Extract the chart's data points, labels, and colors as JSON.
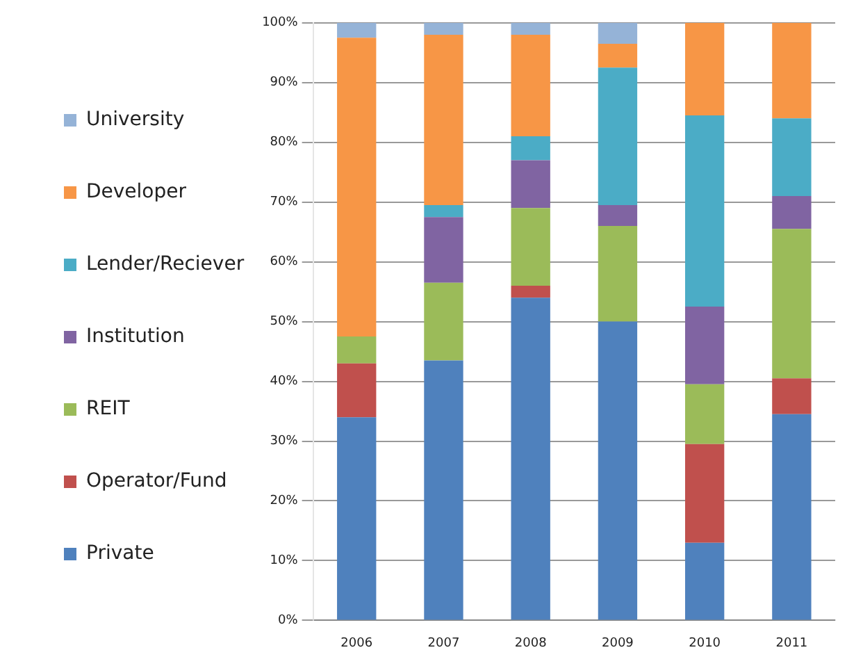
{
  "chart_data": {
    "type": "bar",
    "stacked": true,
    "categories": [
      "2006",
      "2007",
      "2008",
      "2009",
      "2010",
      "2011"
    ],
    "series": [
      {
        "name": "Private",
        "color": "#4f81bd",
        "values": [
          34,
          43.5,
          54,
          50,
          13,
          34.5
        ]
      },
      {
        "name": "Operator/Fund",
        "color": "#c0504d",
        "values": [
          9,
          0,
          2,
          0,
          16.5,
          6
        ]
      },
      {
        "name": "REIT",
        "color": "#9bbb59",
        "values": [
          4.5,
          13,
          13,
          16,
          10,
          25
        ]
      },
      {
        "name": "Institution",
        "color": "#8064a2",
        "values": [
          0,
          11,
          8,
          3.5,
          13,
          5.5
        ]
      },
      {
        "name": "Lender/Reciever",
        "color": "#4bacc6",
        "values": [
          0,
          2,
          4,
          23,
          32,
          13
        ]
      },
      {
        "name": "Developer",
        "color": "#f79646",
        "values": [
          50,
          28.5,
          17,
          4,
          15.5,
          16
        ]
      },
      {
        "name": "University",
        "color": "#95b3d7",
        "values": [
          2.5,
          2,
          2,
          3.5,
          0,
          0
        ]
      }
    ],
    "ylim": [
      0,
      100
    ],
    "yticks": [
      {
        "value": 0,
        "label": "0%"
      },
      {
        "value": 10,
        "label": "10%"
      },
      {
        "value": 20,
        "label": "20%"
      },
      {
        "value": 30,
        "label": "30%"
      },
      {
        "value": 40,
        "label": "40%"
      },
      {
        "value": 50,
        "label": "50%"
      },
      {
        "value": 60,
        "label": "60%"
      },
      {
        "value": 70,
        "label": "70%"
      },
      {
        "value": 80,
        "label": "80%"
      },
      {
        "value": 90,
        "label": "90%"
      },
      {
        "value": 100,
        "label": "100%"
      }
    ],
    "grid": "y",
    "legend": "left"
  }
}
